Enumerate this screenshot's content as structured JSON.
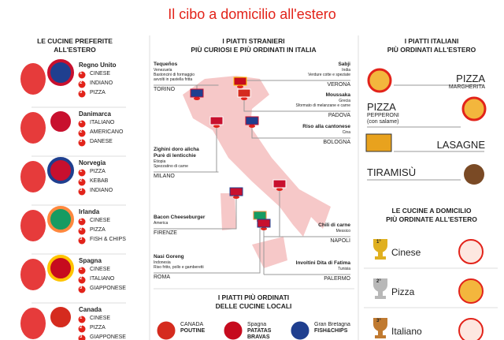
{
  "title": "Il cibo a domicilio all'estero",
  "left": {
    "heading": [
      "LE CUCINE PREFERITE",
      "ALL'ESTERO"
    ],
    "markers": [
      "1",
      "2",
      "3"
    ],
    "countries": [
      {
        "name": "Regno Unito",
        "items": [
          "CINESE",
          "INDIANO",
          "PIZZA"
        ]
      },
      {
        "name": "Danimarca",
        "items": [
          "ITALIANO",
          "AMERICANO",
          "DANESE"
        ]
      },
      {
        "name": "Norvegia",
        "items": [
          "PIZZA",
          "KEBAB",
          "INDIANO"
        ]
      },
      {
        "name": "Irlanda",
        "items": [
          "CINESE",
          "PIZZA",
          "FISH & CHIPS"
        ]
      },
      {
        "name": "Spagna",
        "items": [
          "CINESE",
          "ITALIANO",
          "GIAPPONESE"
        ]
      },
      {
        "name": "Canada",
        "items": [
          "CINESE",
          "PIZZA",
          "GIAPPONESE"
        ]
      }
    ]
  },
  "center": {
    "heading": [
      "I PIATTI STRANIERI",
      "PIÙ CURIOSI E PIÙ ORDINATI IN ITALIA"
    ],
    "dishes": [
      {
        "name": [
          "Tequeños"
        ],
        "origin": "Venezuela",
        "desc": [
          "Bastoncini di formaggio",
          "avvolti in pastella fritta"
        ],
        "city": "TORINO"
      },
      {
        "name": [
          "Zighini doro alicha",
          "Purè di lenticchie"
        ],
        "origin": "Etiopia",
        "desc": [
          "Spezzatino di carne"
        ],
        "city": "MILANO"
      },
      {
        "name": [
          "Bacon Cheeseburger"
        ],
        "origin": "America",
        "desc": [],
        "city": "FIRENZE"
      },
      {
        "name": [
          "Nasi Goreng"
        ],
        "origin": "Indonesia",
        "desc": [
          "Riso fritto, pollo e gamberetti"
        ],
        "city": "ROMA"
      },
      {
        "name": [
          "Sabji"
        ],
        "origin": "India",
        "desc": [
          "Verdure cotte e speziate"
        ],
        "city": "VERONA"
      },
      {
        "name": [
          "Moussaka"
        ],
        "origin": "Grecia",
        "desc": [
          "Sformato di melanzane e carne"
        ],
        "city": "PADOVA"
      },
      {
        "name": [
          "Riso alla cantonese"
        ],
        "origin": "Cina",
        "desc": [],
        "city": "BOLOGNA"
      },
      {
        "name": [
          "Chili di carne"
        ],
        "origin": "Messico",
        "desc": [],
        "city": "NAPOLI"
      },
      {
        "name": [
          "Involtini Dita di Fatima"
        ],
        "origin": "Tunisia",
        "desc": [],
        "city": "PALERMO"
      }
    ],
    "local_heading": [
      "I PIATTI PIÙ ORDINATI",
      "DELLE CUCINE LOCALI"
    ],
    "local": [
      {
        "country": "CANADA",
        "dish": [
          "POUTINE"
        ]
      },
      {
        "country": "Spagna",
        "dish": [
          "PATATAS",
          "BRAVAS"
        ]
      },
      {
        "country": "Gran Bretagna",
        "dish": [
          "FISH&CHIPS"
        ]
      }
    ]
  },
  "right": {
    "heading": [
      "I PIATTI ITALIANI",
      "PIÙ ORDINATI ALL'ESTERO"
    ],
    "dishes": [
      {
        "name": "PIZZA",
        "sub": [
          "MARGHERITA"
        ]
      },
      {
        "name": "PIZZA",
        "sub": [
          "PEPPERONI",
          "(con salame)"
        ]
      },
      {
        "name": "LASAGNE",
        "sub": []
      },
      {
        "name": "TIRAMISÙ",
        "sub": []
      }
    ],
    "ranking_heading": [
      "LE CUCINE A DOMICILIO",
      "PIÙ ORDINATE ALL'ESTERO"
    ],
    "medals": [
      "1°",
      "2°",
      "3°"
    ],
    "ranking": [
      "Cinese",
      "Pizza",
      "Italiano"
    ]
  }
}
